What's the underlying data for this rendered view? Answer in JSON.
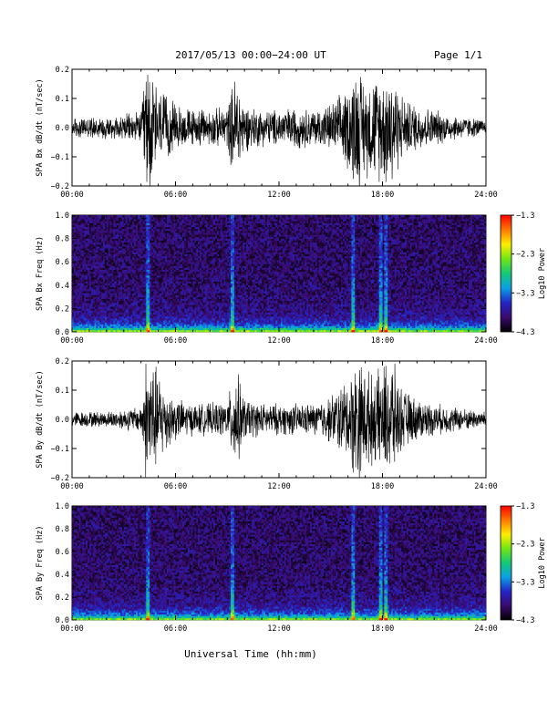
{
  "header": {
    "title": "2017/05/13  00:00−24:00 UT",
    "page": "Page 1/1"
  },
  "footer": {
    "xlabel": "Universal Time (hh:mm)"
  },
  "colors": {
    "trace": "#000000",
    "axes": "#000000",
    "colorbar_stops": [
      "#000000",
      "#3a0a6e",
      "#2424c8",
      "#0aa0e6",
      "#14c878",
      "#6ee614",
      "#ffee00",
      "#ff7800",
      "#ff0000"
    ]
  },
  "chart_data": [
    {
      "type": "line",
      "ylabel": "SPA Bx dB/dt (nT/sec)",
      "xlim": [
        0,
        24
      ],
      "ylim": [
        -0.2,
        0.2
      ],
      "x_ticks": [
        "00:00",
        "06:00",
        "12:00",
        "18:00",
        "24:00"
      ],
      "y_ticks": [
        "0.2",
        "0.1",
        "0.0",
        "−0.1",
        "−0.2"
      ],
      "envelope": {
        "x_hours": [
          0,
          1,
          2,
          3,
          4,
          4.3,
          4.5,
          5,
          5.5,
          6,
          7,
          8,
          9,
          9.5,
          10,
          11,
          12,
          13,
          14,
          15,
          15.5,
          16,
          16.5,
          17,
          17.5,
          18,
          18.5,
          19,
          19.5,
          20,
          21,
          22,
          23,
          24
        ],
        "amplitude": [
          0.04,
          0.04,
          0.045,
          0.05,
          0.06,
          0.25,
          0.25,
          0.15,
          0.12,
          0.09,
          0.07,
          0.07,
          0.08,
          0.22,
          0.09,
          0.07,
          0.07,
          0.08,
          0.07,
          0.09,
          0.12,
          0.16,
          0.25,
          0.18,
          0.2,
          0.2,
          0.25,
          0.14,
          0.1,
          0.09,
          0.07,
          0.05,
          0.04,
          0.03
        ]
      }
    },
    {
      "type": "heatmap",
      "ylabel": "SPA Bx Freq (Hz)",
      "colorbar_label": "Log10 Power",
      "xlim": [
        0,
        24
      ],
      "ylim": [
        0.0,
        1.0
      ],
      "clim": [
        -4.3,
        -1.3
      ],
      "x_ticks": [
        "00:00",
        "06:00",
        "12:00",
        "18:00",
        "24:00"
      ],
      "y_ticks": [
        "1.0",
        "0.8",
        "0.6",
        "0.4",
        "0.2",
        "0.0"
      ],
      "colorbar_ticks": [
        "−1.3",
        "−2.3",
        "−3.3",
        "−4.3"
      ],
      "bright_times_hours": [
        4.4,
        9.3,
        16.3,
        17.9,
        18.2
      ],
      "base_power": -3.95
    },
    {
      "type": "line",
      "ylabel": "SPA By dB/dt (nT/sec)",
      "xlim": [
        0,
        24
      ],
      "ylim": [
        -0.2,
        0.2
      ],
      "x_ticks": [
        "00:00",
        "06:00",
        "12:00",
        "18:00",
        "24:00"
      ],
      "y_ticks": [
        "0.2",
        "0.1",
        "0.0",
        "−0.1",
        "−0.2"
      ],
      "envelope": {
        "x_hours": [
          0,
          1,
          2,
          3,
          4,
          4.3,
          4.5,
          5,
          5.5,
          6,
          7,
          8,
          9,
          9.5,
          10,
          11,
          12,
          13,
          14,
          15,
          15.5,
          16,
          16.5,
          17,
          17.5,
          18,
          18.5,
          19,
          19.5,
          20,
          21,
          22,
          23,
          24
        ],
        "amplitude": [
          0.03,
          0.03,
          0.03,
          0.04,
          0.05,
          0.25,
          0.25,
          0.18,
          0.12,
          0.08,
          0.06,
          0.06,
          0.07,
          0.2,
          0.08,
          0.06,
          0.06,
          0.06,
          0.06,
          0.09,
          0.13,
          0.15,
          0.25,
          0.2,
          0.16,
          0.2,
          0.25,
          0.13,
          0.1,
          0.08,
          0.06,
          0.05,
          0.04,
          0.03
        ]
      }
    },
    {
      "type": "heatmap",
      "ylabel": "SPA By Freq (Hz)",
      "colorbar_label": "Log10 Power",
      "xlim": [
        0,
        24
      ],
      "ylim": [
        0.0,
        1.0
      ],
      "clim": [
        -4.3,
        -1.3
      ],
      "x_ticks": [
        "00:00",
        "06:00",
        "12:00",
        "18:00",
        "24:00"
      ],
      "y_ticks": [
        "1.0",
        "0.8",
        "0.6",
        "0.4",
        "0.2",
        "0.0"
      ],
      "colorbar_ticks": [
        "−1.3",
        "−2.3",
        "−3.3",
        "−4.3"
      ],
      "bright_times_hours": [
        4.4,
        9.3,
        16.3,
        17.9,
        18.2
      ],
      "base_power": -3.95
    }
  ]
}
